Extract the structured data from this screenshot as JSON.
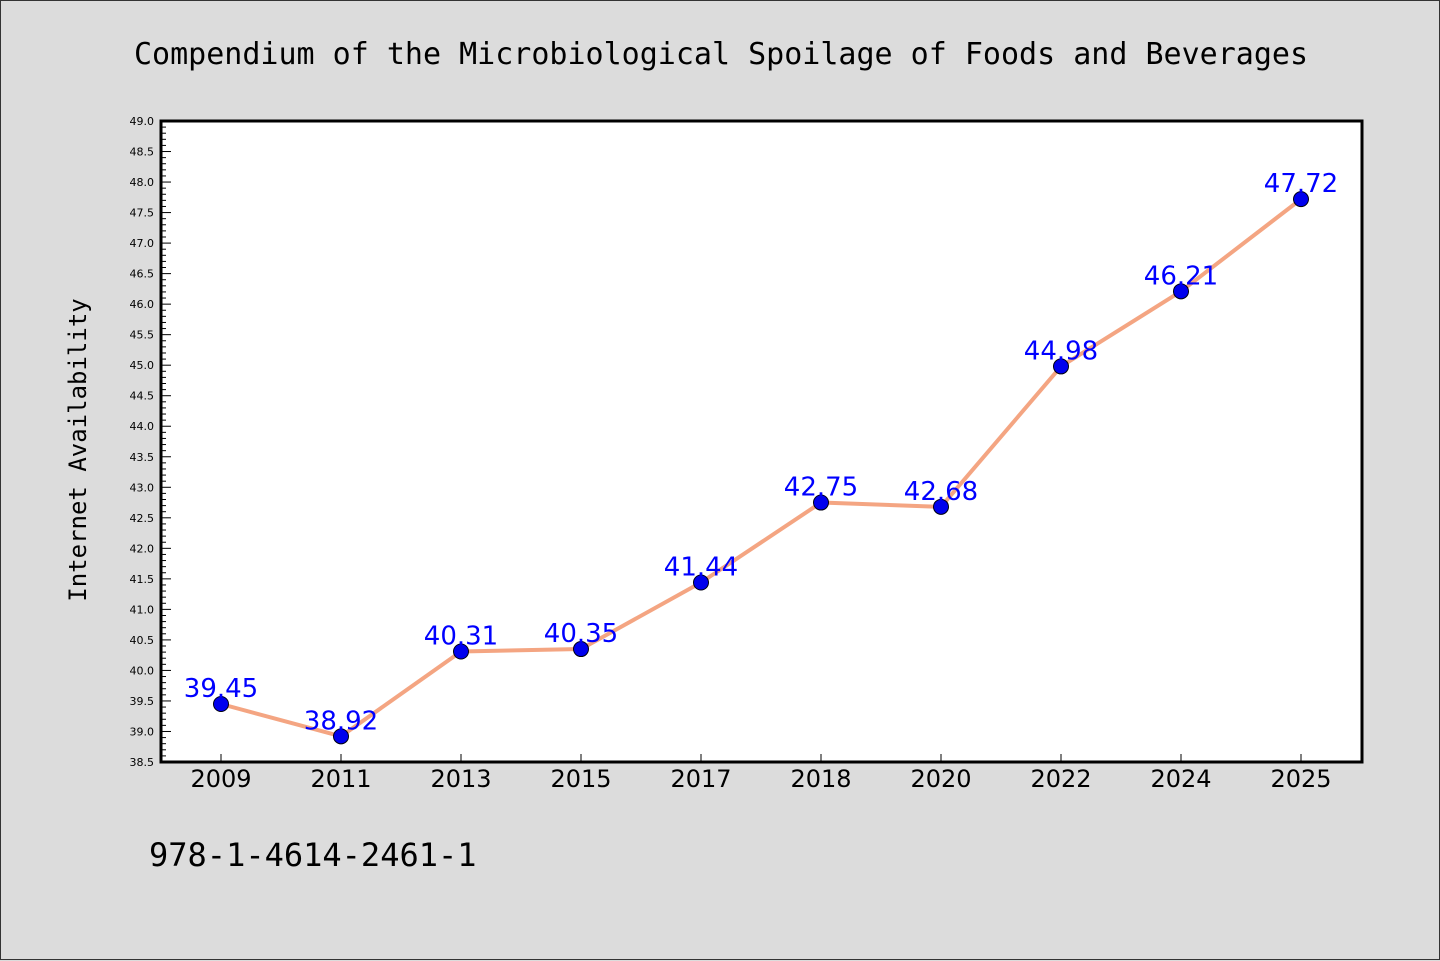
{
  "chart_data": {
    "type": "line",
    "title": "Compendium of the Microbiological Spoilage of Foods and Beverages",
    "xlabel": "",
    "ylabel": "Internet Availability",
    "categories": [
      "2009",
      "2011",
      "2013",
      "2015",
      "2017",
      "2018",
      "2020",
      "2022",
      "2024",
      "2025"
    ],
    "values": [
      39.45,
      38.92,
      40.31,
      40.35,
      41.44,
      42.75,
      42.68,
      44.98,
      46.21,
      47.72
    ],
    "data_labels": [
      "39.45",
      "38.92",
      "40.31",
      "40.35",
      "41.44",
      "42.75",
      "42.68",
      "44.98",
      "46.21",
      "47.72"
    ],
    "ylim": [
      38.5,
      49.0
    ],
    "y_ticks": [
      "38.5",
      "39.0",
      "39.5",
      "40.0",
      "40.5",
      "41.0",
      "41.5",
      "42.0",
      "42.5",
      "43.0",
      "43.5",
      "44.0",
      "44.5",
      "45.0",
      "45.5",
      "46.0",
      "46.5",
      "47.0",
      "47.5",
      "48.0",
      "48.5",
      "49.0"
    ],
    "grid": false,
    "legend": "none",
    "colors": {
      "line": "#f4a582",
      "marker": "#0000ee",
      "label": "#0000ff",
      "plot_bg": "#ffffff",
      "page_bg": "#dcdcdc"
    }
  },
  "footer_text": "978-1-4614-2461-1"
}
